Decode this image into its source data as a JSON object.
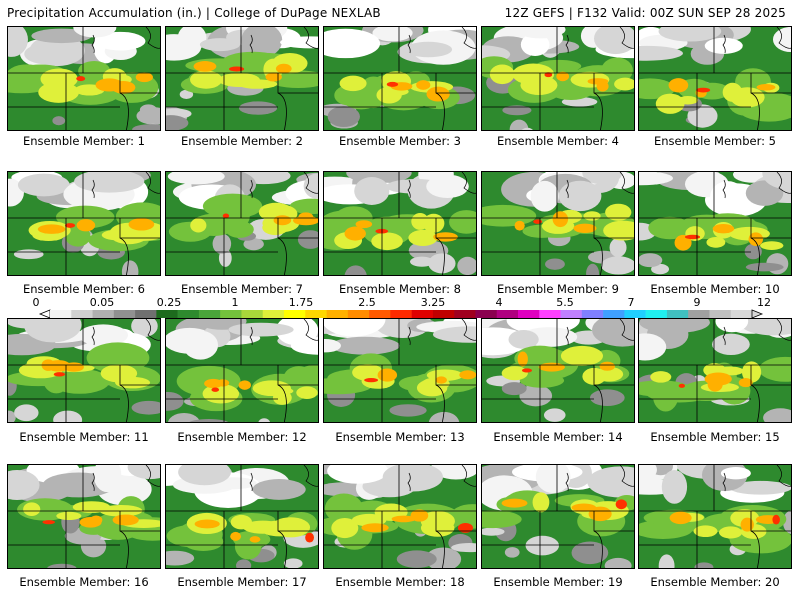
{
  "header": {
    "left": "Precipitation Accumulation (in.) | College of DuPage NEXLAB",
    "right": "12Z GEFS | F132 Valid: 00Z SUN SEP 28 2025"
  },
  "members": [
    "Ensemble Member: 1",
    "Ensemble Member: 2",
    "Ensemble Member: 3",
    "Ensemble Member: 4",
    "Ensemble Member: 5",
    "Ensemble Member: 6",
    "Ensemble Member: 7",
    "Ensemble Member: 8",
    "Ensemble Member: 9",
    "Ensemble Member: 10",
    "Ensemble Member: 11",
    "Ensemble Member: 12",
    "Ensemble Member: 13",
    "Ensemble Member: 14",
    "Ensemble Member: 15",
    "Ensemble Member: 16",
    "Ensemble Member: 17",
    "Ensemble Member: 18",
    "Ensemble Member: 19",
    "Ensemble Member: 20"
  ],
  "colorbar": {
    "labels": [
      "0",
      "0.05",
      "0.25",
      "1",
      "1.75",
      "2.5",
      "3.25",
      "4",
      "5.5",
      "7",
      "9",
      "12"
    ],
    "colors": [
      "#f2f2f2",
      "#d0d0d0",
      "#b0b0b0",
      "#909090",
      "#707070",
      "#1d6b1d",
      "#2e8a2e",
      "#4aa53a",
      "#74c23c",
      "#a8d83a",
      "#dff03a",
      "#ffff00",
      "#ffd700",
      "#ffb000",
      "#ff8c00",
      "#ff5a00",
      "#ff2a00",
      "#e00000",
      "#c00000",
      "#a00020",
      "#8b0050",
      "#b00080",
      "#e000c0",
      "#ff40ff",
      "#c080ff",
      "#8080ff",
      "#40a0ff",
      "#20d0ff",
      "#20f0f0",
      "#40c0c0",
      "#a0a0a0",
      "#c0c0c0",
      "#d8d8d8"
    ]
  }
}
